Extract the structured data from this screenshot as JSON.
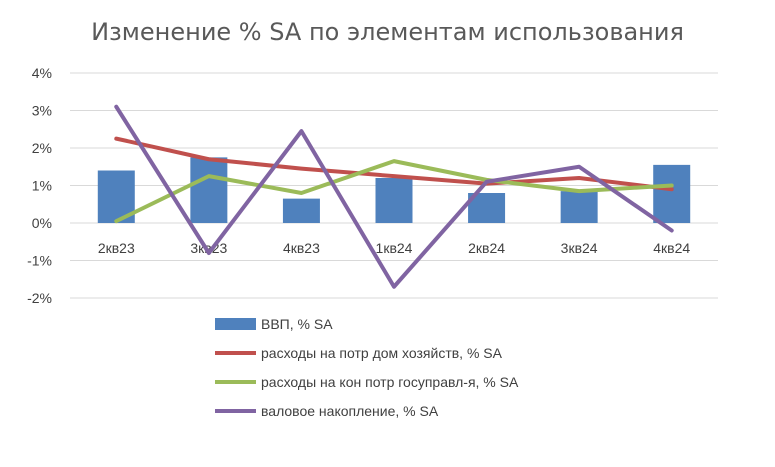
{
  "chart_data": {
    "type": "bar",
    "title": "Изменение % SA по элементам использования",
    "categories": [
      "2кв23",
      "3кв23",
      "4кв23",
      "1кв24",
      "2кв24",
      "3кв24",
      "4кв24"
    ],
    "y_tick_labels": [
      "4%",
      "3%",
      "2%",
      "1%",
      "0%",
      "-1%",
      "-2%"
    ],
    "ylim": [
      -2,
      4
    ],
    "grid": true,
    "legend_position": "bottom",
    "series": [
      {
        "name": "ВВП, % SA",
        "type": "bar",
        "color": "#4f81bd",
        "values": [
          1.4,
          1.75,
          0.65,
          1.2,
          0.8,
          0.85,
          1.55
        ]
      },
      {
        "name": "расходы на потр дом хозяйств, % SA",
        "type": "line",
        "color": "#c0504d",
        "values": [
          2.25,
          1.7,
          1.45,
          1.25,
          1.05,
          1.2,
          0.9
        ]
      },
      {
        "name": "расходы на кон потр госуправл-я, % SA",
        "type": "line",
        "color": "#9bbb59",
        "values": [
          0.05,
          1.25,
          0.8,
          1.65,
          1.15,
          0.85,
          1.0
        ]
      },
      {
        "name": "валовое накопление, % SA",
        "type": "line",
        "color": "#8064a2",
        "values": [
          3.1,
          -0.8,
          2.45,
          -1.7,
          1.1,
          1.5,
          -0.2
        ]
      }
    ]
  }
}
